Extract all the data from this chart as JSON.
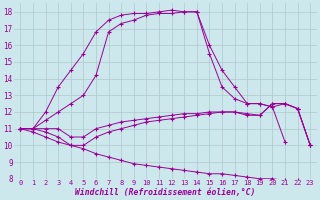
{
  "background_color": "#cce8ec",
  "line_color": "#990099",
  "grid_color": "#b0c8cc",
  "xlabel": "Windchill (Refroidissement éolien,°C)",
  "xlim": [
    -0.5,
    23.5
  ],
  "ylim": [
    8,
    18.5
  ],
  "yticks": [
    8,
    9,
    10,
    11,
    12,
    13,
    14,
    15,
    16,
    17,
    18
  ],
  "xticks": [
    0,
    1,
    2,
    3,
    4,
    5,
    6,
    7,
    8,
    9,
    10,
    11,
    12,
    13,
    14,
    15,
    16,
    17,
    18,
    19,
    20,
    21,
    22,
    23
  ],
  "series": [
    {
      "x": [
        0,
        1,
        2,
        3,
        4,
        5,
        6,
        7,
        8,
        9,
        10,
        11,
        12,
        13,
        14,
        15,
        16,
        17,
        18,
        19,
        20,
        21,
        22,
        23
      ],
      "y": [
        11,
        11,
        12,
        13.5,
        14.5,
        15.5,
        16.8,
        17.5,
        17.8,
        17.9,
        17.9,
        18.0,
        18.1,
        18.0,
        18.0,
        16.0,
        14.5,
        13.5,
        12.5,
        12.5,
        12.3,
        10.2,
        null,
        null
      ]
    },
    {
      "x": [
        0,
        1,
        2,
        3,
        4,
        5,
        6,
        7,
        8,
        9,
        10,
        11,
        12,
        13,
        14,
        15,
        16,
        17,
        18,
        19,
        20,
        21,
        22,
        23
      ],
      "y": [
        11,
        11,
        11.5,
        12,
        12.5,
        13,
        14.2,
        16.8,
        17.3,
        17.5,
        17.8,
        17.9,
        17.9,
        18.0,
        18.0,
        15.5,
        13.5,
        12.8,
        12.5,
        12.5,
        12.3,
        12.5,
        12.2,
        10.0
      ]
    },
    {
      "x": [
        0,
        1,
        2,
        3,
        4,
        5,
        6,
        7,
        8,
        9,
        10,
        11,
        12,
        13,
        14,
        15,
        16,
        17,
        18,
        19,
        20,
        21,
        22,
        23
      ],
      "y": [
        11,
        11,
        11,
        11,
        10.5,
        10.5,
        11,
        11.2,
        11.4,
        11.5,
        11.6,
        11.7,
        11.8,
        11.9,
        11.9,
        12.0,
        12.0,
        12.0,
        11.9,
        11.8,
        12.5,
        12.5,
        12.2,
        10.0
      ]
    },
    {
      "x": [
        0,
        1,
        2,
        3,
        4,
        5,
        6,
        7,
        8,
        9,
        10,
        11,
        12,
        13,
        14,
        15,
        16,
        17,
        18,
        19,
        20,
        21,
        22,
        23
      ],
      "y": [
        11,
        11,
        10.8,
        10.5,
        10,
        10,
        10.5,
        10.8,
        11,
        11.2,
        11.4,
        11.5,
        11.6,
        11.7,
        11.8,
        11.9,
        12.0,
        12.0,
        11.8,
        11.8,
        12.5,
        12.5,
        12.2,
        10.0
      ]
    },
    {
      "x": [
        0,
        1,
        2,
        3,
        4,
        5,
        6,
        7,
        8,
        9,
        10,
        11,
        12,
        13,
        14,
        15,
        16,
        17,
        18,
        19,
        20,
        21,
        22,
        23
      ],
      "y": [
        11,
        10.8,
        10.5,
        10.2,
        10.0,
        9.8,
        9.5,
        9.3,
        9.1,
        8.9,
        8.8,
        8.7,
        8.6,
        8.5,
        8.4,
        8.3,
        8.3,
        8.2,
        8.1,
        8.0,
        8.0,
        7.9,
        7.9,
        7.8
      ]
    }
  ]
}
